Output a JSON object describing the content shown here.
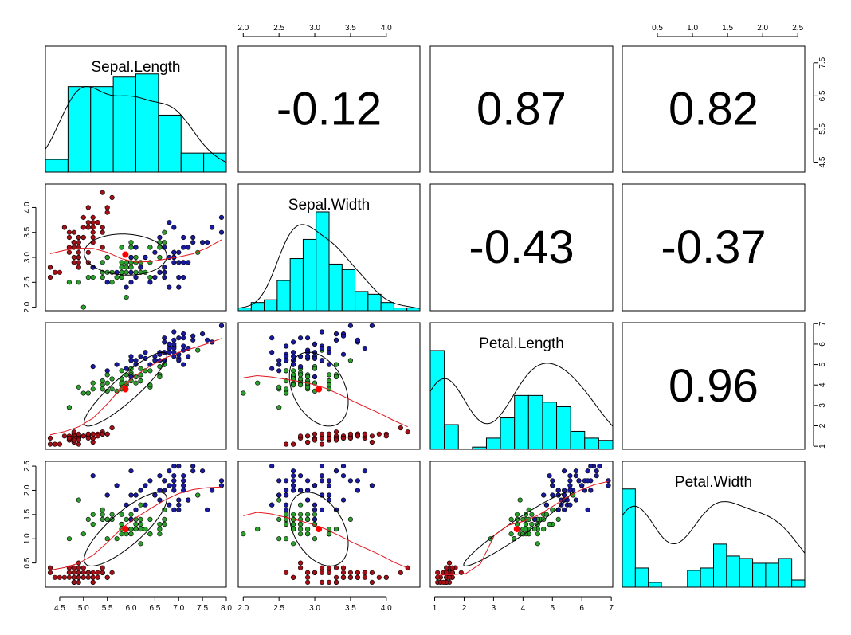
{
  "chart_data": {
    "type": "pairs-panels",
    "dataset": "iris",
    "variables": [
      "Sepal.Length",
      "Sepal.Width",
      "Petal.Length",
      "Petal.Width"
    ],
    "correlations": [
      {
        "row": 0,
        "col": 1,
        "pair": [
          "Sepal.Length",
          "Sepal.Width"
        ],
        "label": "-0.12",
        "value": -0.12
      },
      {
        "row": 0,
        "col": 2,
        "pair": [
          "Sepal.Length",
          "Petal.Length"
        ],
        "label": "0.87",
        "value": 0.87
      },
      {
        "row": 0,
        "col": 3,
        "pair": [
          "Sepal.Length",
          "Petal.Width"
        ],
        "label": "0.82",
        "value": 0.82
      },
      {
        "row": 1,
        "col": 2,
        "pair": [
          "Sepal.Width",
          "Petal.Length"
        ],
        "label": "-0.43",
        "value": -0.43
      },
      {
        "row": 1,
        "col": 3,
        "pair": [
          "Sepal.Width",
          "Petal.Width"
        ],
        "label": "-0.37",
        "value": -0.37
      },
      {
        "row": 2,
        "col": 3,
        "pair": [
          "Petal.Length",
          "Petal.Width"
        ],
        "label": "0.96",
        "value": 0.96
      }
    ],
    "axis_ticks": {
      "sepal_length": [
        "4.5",
        "5.0",
        "5.5",
        "6.0",
        "6.5",
        "7.0",
        "7.5",
        "8.0"
      ],
      "sepal_width": [
        "2.0",
        "2.5",
        "3.0",
        "3.5",
        "4.0"
      ],
      "petal_length": [
        "1",
        "2",
        "3",
        "4",
        "5",
        "6",
        "7"
      ],
      "petal_width": [
        "0.5",
        "1.0",
        "1.5",
        "2.0",
        "2.5"
      ],
      "sepal_length_right": [
        "4.5",
        "5.5",
        "6.5",
        "7.5"
      ]
    },
    "histograms": {
      "sepal_length": {
        "range": [
          4.3,
          7.9
        ],
        "counts": [
          4,
          27,
          27,
          30,
          31,
          18,
          6,
          6
        ],
        "density_peak": 5.8
      },
      "sepal_width": {
        "range": [
          2.0,
          4.4
        ],
        "counts": [
          1,
          3,
          4,
          11,
          19,
          26,
          36,
          17,
          15,
          7,
          6,
          3,
          1,
          1
        ]
      },
      "petal_length": {
        "range": [
          1,
          6.9
        ],
        "counts": [
          44,
          11,
          0,
          1,
          5,
          14,
          24,
          24,
          21,
          19,
          8,
          5,
          4
        ]
      },
      "petal_width": {
        "range": [
          0.1,
          2.5
        ],
        "counts": [
          41,
          8,
          2,
          0,
          0,
          7,
          8,
          18,
          13,
          12,
          10,
          10,
          12,
          3
        ]
      }
    },
    "species_colors": {
      "setosa": "#a50f15",
      "versicolor": "#2ca02c",
      "virginica": "#1a1a9c"
    },
    "hist_fill": "#00ffff",
    "smooth_color": "#e3141d",
    "centroid_color": "#ff0000",
    "means": {
      "Sepal.Length": 5.84,
      "Sepal.Width": 3.06,
      "Petal.Length": 3.76,
      "Petal.Width": 1.2
    }
  }
}
